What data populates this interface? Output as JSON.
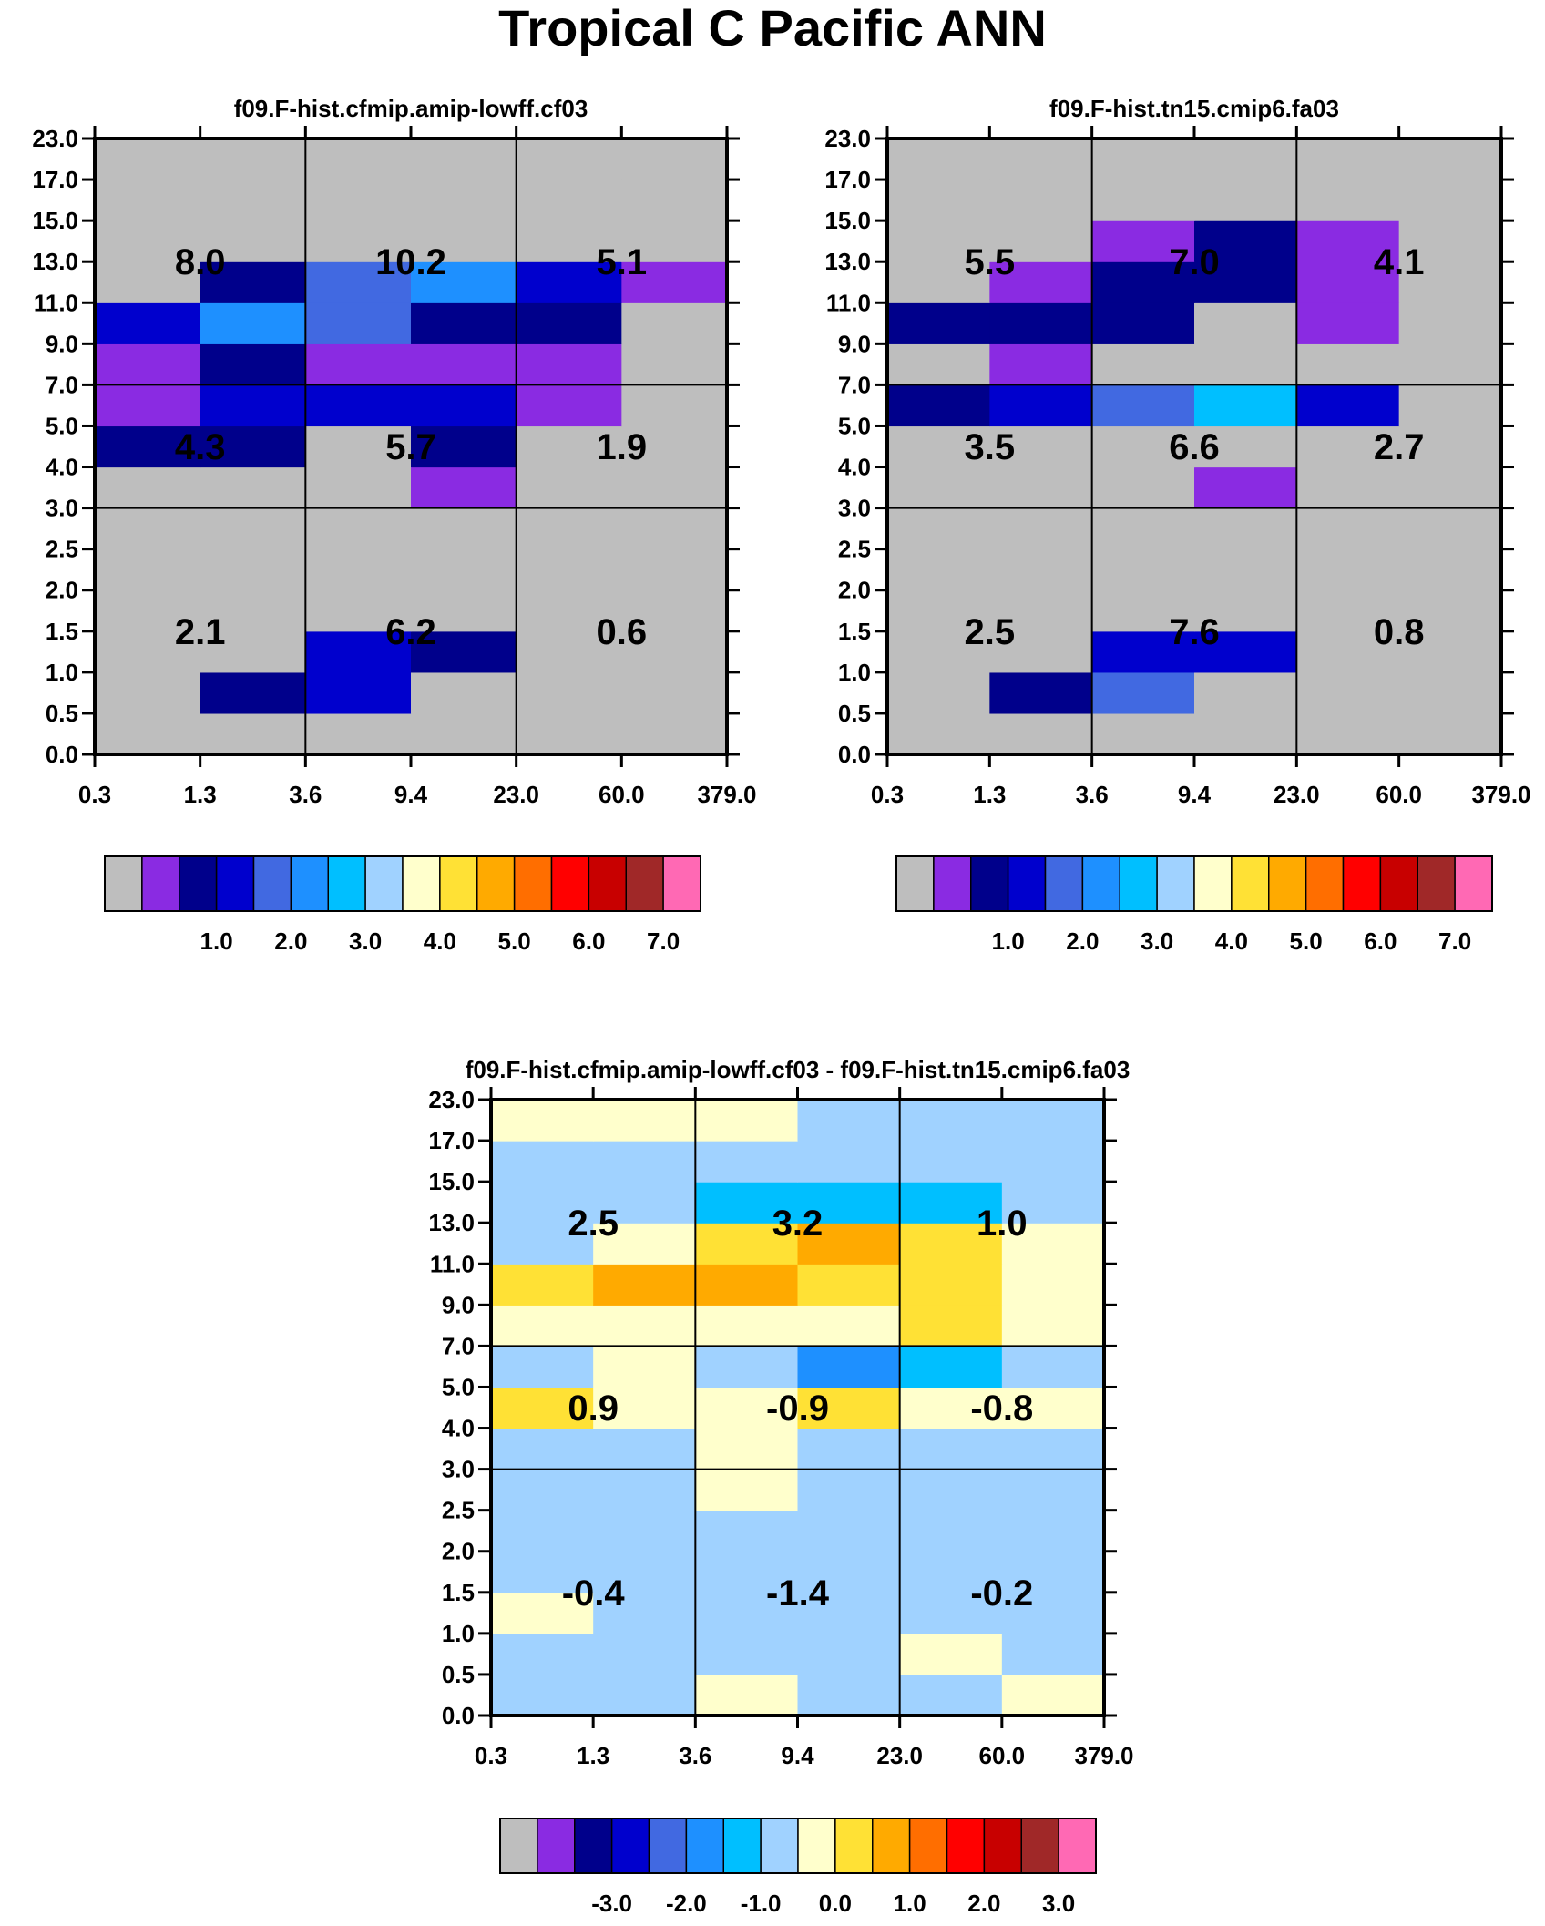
{
  "title": "Tropical C Pacific ANN",
  "colors": {
    "missing": "#bebebe",
    "border": "#000000",
    "palette": [
      "#bebebe",
      "#8a2be2",
      "#00008b",
      "#0000cd",
      "#4169e1",
      "#1e90ff",
      "#00bfff",
      "#a0d2ff",
      "#ffffcc",
      "#ffe135",
      "#ffaa00",
      "#ff6e00",
      "#ff0000",
      "#c80000",
      "#a02828",
      "#ff69b4"
    ]
  },
  "chart_data": [
    {
      "type": "heatmap",
      "title": "f09.F-hist.cfmip.amip-lowff.cf03",
      "x_ticklabels": [
        "0.3",
        "1.3",
        "3.6",
        "9.4",
        "23.0",
        "60.0",
        "379.0"
      ],
      "y_ticklabels": [
        "0.0",
        "0.5",
        "1.0",
        "1.5",
        "2.0",
        "2.5",
        "3.0",
        "4.0",
        "5.0",
        "7.0",
        "9.0",
        "11.0",
        "13.0",
        "15.0",
        "17.0",
        "23.0"
      ],
      "grid": "3x3 blocks (tau: 0.3-3.6, 3.6-23, 23-379; ctp level indices 0-6, 6-9, 9-15)",
      "color_index_rows_bottom_to_top": [
        [
          0,
          0,
          0,
          0,
          0,
          0
        ],
        [
          0,
          2,
          3,
          0,
          0,
          0
        ],
        [
          0,
          0,
          3,
          2,
          0,
          0
        ],
        [
          0,
          0,
          0,
          0,
          0,
          0
        ],
        [
          0,
          0,
          0,
          0,
          0,
          0
        ],
        [
          0,
          0,
          0,
          0,
          0,
          0
        ],
        [
          0,
          0,
          0,
          1,
          0,
          0
        ],
        [
          2,
          2,
          0,
          2,
          0,
          0
        ],
        [
          1,
          3,
          3,
          3,
          1,
          0
        ],
        [
          1,
          2,
          1,
          1,
          1,
          0
        ],
        [
          3,
          5,
          4,
          2,
          2,
          0
        ],
        [
          0,
          2,
          4,
          5,
          3,
          1
        ],
        [
          0,
          0,
          0,
          0,
          0,
          0
        ],
        [
          0,
          0,
          0,
          0,
          0,
          0
        ],
        [
          0,
          0,
          0,
          0,
          0,
          0
        ]
      ],
      "block_labels": [
        [
          "2.1",
          "6.2",
          "0.6"
        ],
        [
          "4.3",
          "5.7",
          "1.9"
        ],
        [
          "8.0",
          "10.2",
          "5.1"
        ]
      ],
      "colorbar": {
        "labels": [
          "1.0",
          "2.0",
          "3.0",
          "4.0",
          "5.0",
          "6.0",
          "7.0"
        ]
      }
    },
    {
      "type": "heatmap",
      "title": "f09.F-hist.tn15.cmip6.fa03",
      "x_ticklabels": [
        "0.3",
        "1.3",
        "3.6",
        "9.4",
        "23.0",
        "60.0",
        "379.0"
      ],
      "y_ticklabels": [
        "0.0",
        "0.5",
        "1.0",
        "1.5",
        "2.0",
        "2.5",
        "3.0",
        "4.0",
        "5.0",
        "7.0",
        "9.0",
        "11.0",
        "13.0",
        "15.0",
        "17.0",
        "23.0"
      ],
      "grid": "3x3 blocks",
      "color_index_rows_bottom_to_top": [
        [
          0,
          0,
          0,
          0,
          0,
          0
        ],
        [
          0,
          2,
          4,
          0,
          0,
          0
        ],
        [
          0,
          0,
          3,
          3,
          0,
          0
        ],
        [
          0,
          0,
          0,
          0,
          0,
          0
        ],
        [
          0,
          0,
          0,
          0,
          0,
          0
        ],
        [
          0,
          0,
          0,
          0,
          0,
          0
        ],
        [
          0,
          0,
          0,
          1,
          0,
          0
        ],
        [
          0,
          0,
          0,
          0,
          0,
          0
        ],
        [
          2,
          3,
          4,
          6,
          3,
          0
        ],
        [
          0,
          1,
          0,
          0,
          0,
          0
        ],
        [
          2,
          2,
          2,
          0,
          1,
          0
        ],
        [
          0,
          1,
          2,
          2,
          1,
          0
        ],
        [
          0,
          0,
          1,
          2,
          1,
          0
        ],
        [
          0,
          0,
          0,
          0,
          0,
          0
        ],
        [
          0,
          0,
          0,
          0,
          0,
          0
        ]
      ],
      "block_labels": [
        [
          "2.5",
          "7.6",
          "0.8"
        ],
        [
          "3.5",
          "6.6",
          "2.7"
        ],
        [
          "5.5",
          "7.0",
          "4.1"
        ]
      ],
      "colorbar": {
        "labels": [
          "1.0",
          "2.0",
          "3.0",
          "4.0",
          "5.0",
          "6.0",
          "7.0"
        ]
      }
    },
    {
      "type": "heatmap",
      "title": "f09.F-hist.cfmip.amip-lowff.cf03 - f09.F-hist.tn15.cmip6.fa03",
      "x_ticklabels": [
        "0.3",
        "1.3",
        "3.6",
        "9.4",
        "23.0",
        "60.0",
        "379.0"
      ],
      "y_ticklabels": [
        "0.0",
        "0.5",
        "1.0",
        "1.5",
        "2.0",
        "2.5",
        "3.0",
        "4.0",
        "5.0",
        "7.0",
        "9.0",
        "11.0",
        "13.0",
        "15.0",
        "17.0",
        "23.0"
      ],
      "grid": "3x3 blocks (difference)",
      "color_index_rows_bottom_to_top": [
        [
          7,
          7,
          8,
          7,
          7,
          8
        ],
        [
          7,
          7,
          7,
          7,
          8,
          7
        ],
        [
          8,
          7,
          7,
          7,
          7,
          7
        ],
        [
          7,
          7,
          7,
          7,
          7,
          7
        ],
        [
          7,
          7,
          7,
          7,
          7,
          7
        ],
        [
          7,
          7,
          8,
          7,
          7,
          7
        ],
        [
          7,
          7,
          8,
          7,
          7,
          7
        ],
        [
          9,
          8,
          8,
          9,
          8,
          8
        ],
        [
          7,
          8,
          7,
          5,
          6,
          7
        ],
        [
          8,
          8,
          8,
          8,
          9,
          8
        ],
        [
          9,
          10,
          10,
          9,
          9,
          8
        ],
        [
          7,
          8,
          9,
          10,
          9,
          8
        ],
        [
          7,
          7,
          6,
          6,
          6,
          7
        ],
        [
          7,
          7,
          7,
          7,
          7,
          7
        ],
        [
          8,
          8,
          8,
          7,
          7,
          7
        ]
      ],
      "block_labels": [
        [
          "-0.4",
          "-1.4",
          "-0.2"
        ],
        [
          "0.9",
          "-0.9",
          "-0.8"
        ],
        [
          "2.5",
          "3.2",
          "1.0"
        ]
      ],
      "colorbar": {
        "labels": [
          "-3.0",
          "-2.0",
          "-1.0",
          "0.0",
          "1.0",
          "2.0",
          "3.0"
        ]
      }
    }
  ]
}
